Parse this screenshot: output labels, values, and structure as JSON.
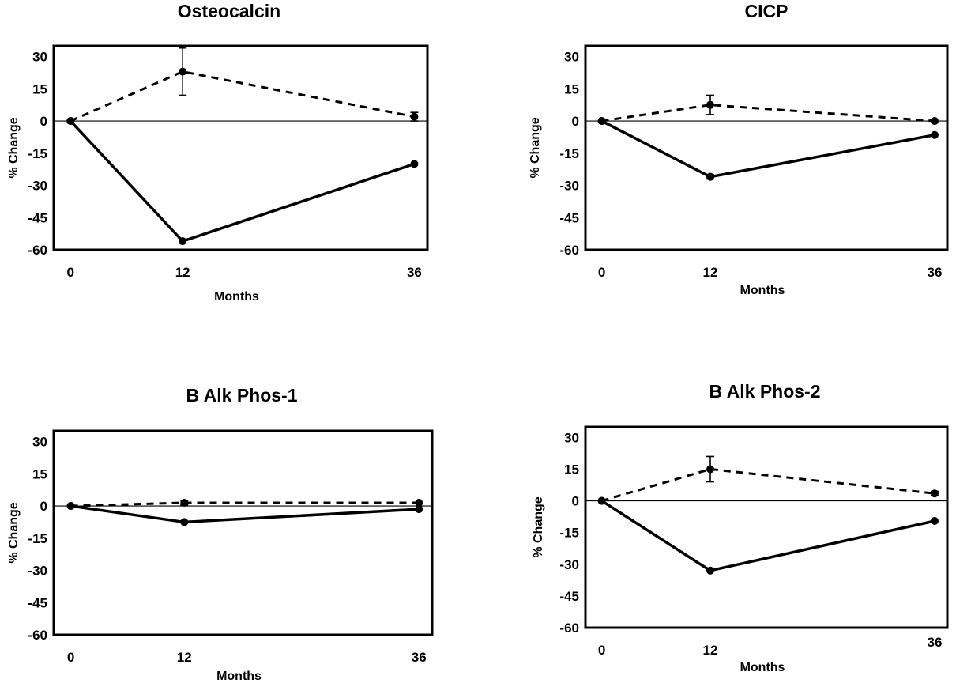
{
  "chart_data": [
    {
      "type": "line",
      "title": "Osteocalcin",
      "xlabel": "Months",
      "ylabel": "% Change",
      "x": [
        0,
        12,
        36
      ],
      "xticks": [
        "0",
        "12",
        "36"
      ],
      "yticks": [
        "30",
        "15",
        "0",
        "-15",
        "-30",
        "-45",
        "-60"
      ],
      "ylim": [
        -60,
        35
      ],
      "series": [
        {
          "style": "dashed",
          "values": [
            0,
            23,
            2
          ],
          "errors": [
            0,
            11,
            2
          ]
        },
        {
          "style": "solid",
          "values": [
            0,
            -56,
            -20
          ],
          "errors": [
            0,
            1,
            0
          ]
        }
      ]
    },
    {
      "type": "line",
      "title": "CICP",
      "xlabel": "Months",
      "ylabel": "% Change",
      "x": [
        0,
        12,
        36
      ],
      "xticks": [
        "0",
        "12",
        "36"
      ],
      "yticks": [
        "30",
        "15",
        "0",
        "-15",
        "-30",
        "-45",
        "-60"
      ],
      "ylim": [
        -60,
        35
      ],
      "series": [
        {
          "style": "dashed",
          "values": [
            0,
            7.5,
            0
          ],
          "errors": [
            0,
            4.5,
            0
          ]
        },
        {
          "style": "solid",
          "values": [
            0,
            -26,
            -6.5
          ],
          "errors": [
            0,
            1,
            0
          ]
        }
      ]
    },
    {
      "type": "line",
      "title": "B Alk Phos-1",
      "xlabel": "Months",
      "ylabel": "% Change",
      "x": [
        0,
        12,
        36
      ],
      "xticks": [
        "0",
        "12",
        "36"
      ],
      "yticks": [
        "30",
        "15",
        "0",
        "-15",
        "-30",
        "-45",
        "-60"
      ],
      "ylim": [
        -60,
        35
      ],
      "series": [
        {
          "style": "dashed",
          "values": [
            0,
            1.5,
            1.5
          ],
          "errors": [
            0,
            1,
            0
          ]
        },
        {
          "style": "solid",
          "values": [
            0,
            -7.5,
            -1.5
          ],
          "errors": [
            0,
            0,
            0
          ]
        }
      ]
    },
    {
      "type": "line",
      "title": "B Alk Phos-2",
      "xlabel": "Months",
      "ylabel": "% Change",
      "x": [
        0,
        12,
        36
      ],
      "xticks": [
        "0",
        "12",
        "36"
      ],
      "yticks": [
        "30",
        "15",
        "0",
        "-15",
        "-30",
        "-45",
        "-60"
      ],
      "ylim": [
        -60,
        35
      ],
      "series": [
        {
          "style": "dashed",
          "values": [
            0,
            15,
            3.5
          ],
          "errors": [
            0,
            6,
            1
          ]
        },
        {
          "style": "solid",
          "values": [
            0,
            -33,
            -9.5
          ],
          "errors": [
            0,
            0,
            0
          ]
        }
      ]
    }
  ]
}
